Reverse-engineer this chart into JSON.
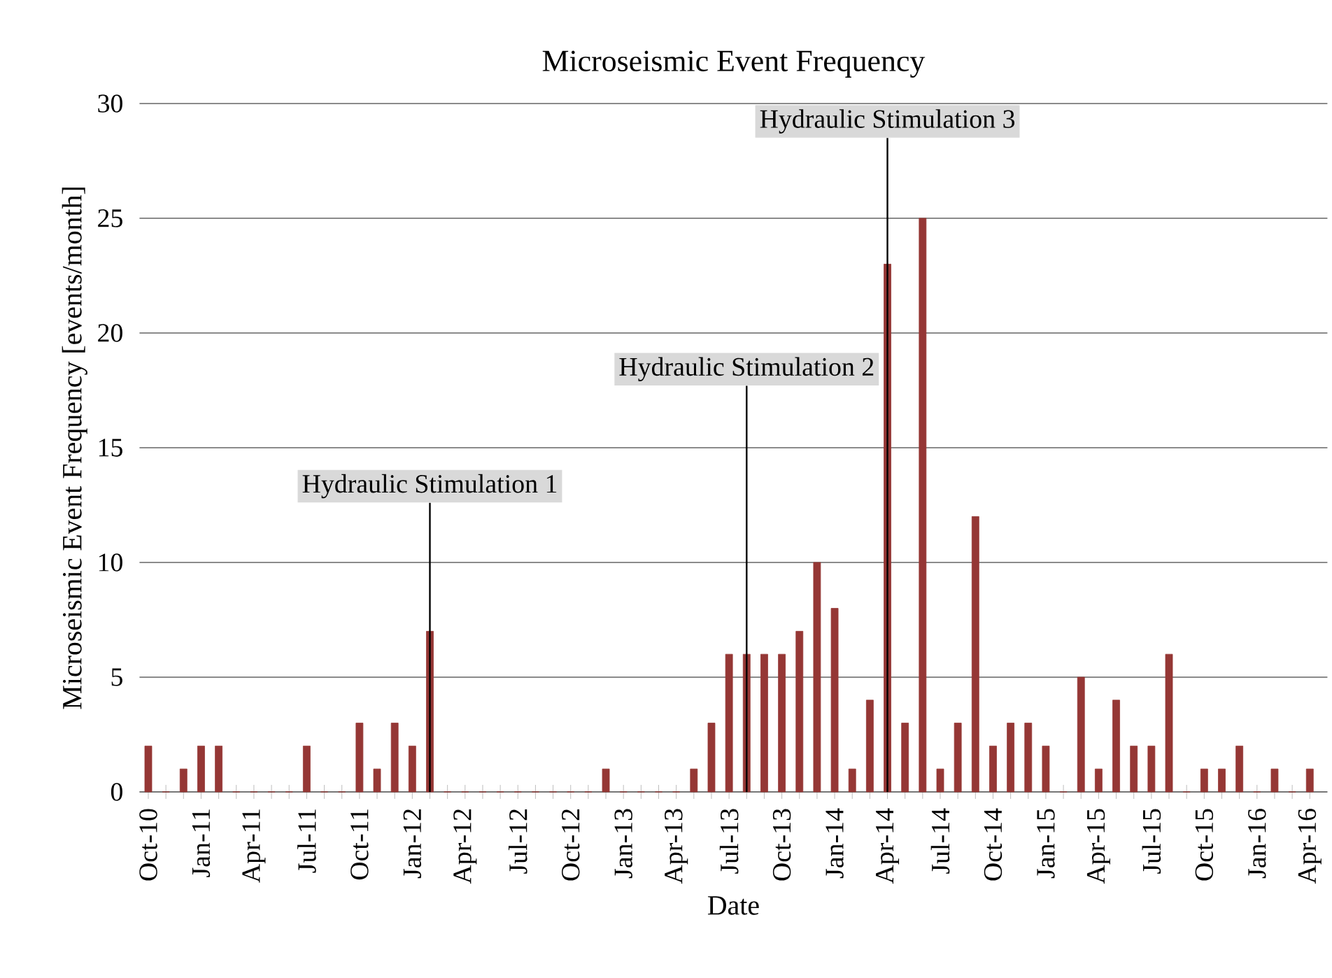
{
  "chart_data": {
    "type": "bar",
    "title": "Microseismic Event Frequency",
    "xlabel": "Date",
    "ylabel": "Microseismic Event Frequency [events/month]",
    "categories": [
      "Oct-10",
      null,
      null,
      "Jan-11",
      null,
      null,
      "Apr-11",
      null,
      null,
      "Jul-11",
      null,
      null,
      "Oct-11",
      null,
      null,
      "Jan-12",
      null,
      null,
      "Apr-12",
      null,
      null,
      "Jul-12",
      null,
      null,
      "Oct-12",
      null,
      null,
      "Jan-13",
      null,
      null,
      "Apr-13",
      null,
      null,
      "Jul-13",
      null,
      null,
      "Oct-13",
      null,
      null,
      "Jan-14",
      null,
      null,
      "Apr-14",
      null,
      null,
      "Jul-14",
      null,
      null,
      "Oct-14",
      null,
      null,
      "Jan-15",
      null,
      null,
      "Apr-15",
      null,
      null,
      "Jul-15",
      null,
      null,
      "Oct-15",
      null,
      null,
      "Jan-16",
      null,
      null,
      "Apr-16"
    ],
    "values": [
      2,
      0,
      1,
      2,
      2,
      0,
      0,
      0,
      0,
      2,
      0,
      0,
      3,
      1,
      3,
      2,
      7,
      0,
      0,
      0,
      0,
      0,
      0,
      0,
      0,
      0,
      1,
      0,
      0,
      0,
      0,
      1,
      3,
      6,
      6,
      6,
      6,
      7,
      10,
      8,
      1,
      4,
      23,
      3,
      25,
      1,
      3,
      12,
      2,
      3,
      3,
      2,
      0,
      5,
      1,
      4,
      2,
      2,
      6,
      0,
      1,
      1,
      2,
      0,
      1,
      0,
      1
    ],
    "color": "#953735",
    "ylim": [
      0,
      30
    ],
    "yticks": [
      0,
      5,
      10,
      15,
      20,
      25,
      30
    ],
    "grid": "y",
    "annotations": [
      {
        "text": "Hydraulic Stimulation 1",
        "y": 0
      },
      {
        "text": "Hydraulic Stimulation 2",
        "y": 0
      },
      {
        "text": "Hydraulic Stimulation 3",
        "y": 0
      }
    ]
  }
}
